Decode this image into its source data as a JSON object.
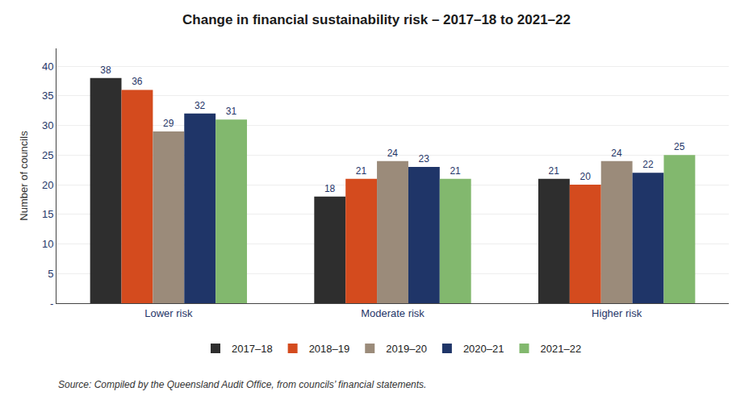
{
  "chart_data": {
    "type": "bar",
    "title": "Change in financial sustainability risk – 2017–18 to 2021–22",
    "y_label": "Number of councils",
    "categories": [
      "Lower risk",
      "Moderate risk",
      "Higher risk"
    ],
    "series": [
      {
        "name": "2017–18",
        "color": "#2e2e2e",
        "values": [
          38,
          18,
          21
        ]
      },
      {
        "name": "2018–19",
        "color": "#d44b1e",
        "values": [
          36,
          21,
          20
        ]
      },
      {
        "name": "2019–20",
        "color": "#9b8b7a",
        "values": [
          29,
          24,
          24
        ]
      },
      {
        "name": "2020–21",
        "color": "#1f3568",
        "values": [
          32,
          23,
          22
        ]
      },
      {
        "name": "2021–22",
        "color": "#82b86e",
        "values": [
          31,
          21,
          25
        ]
      }
    ],
    "ylim": [
      0,
      43
    ],
    "yticks": [
      {
        "value": 0,
        "label": "-"
      },
      5,
      10,
      15,
      20,
      25,
      30,
      35,
      40
    ],
    "grid": true,
    "legend": "bottom",
    "data_labels": true,
    "annotations": [
      "Source: Compiled by the Queensland Audit Office, from councils’ financial statements."
    ]
  }
}
